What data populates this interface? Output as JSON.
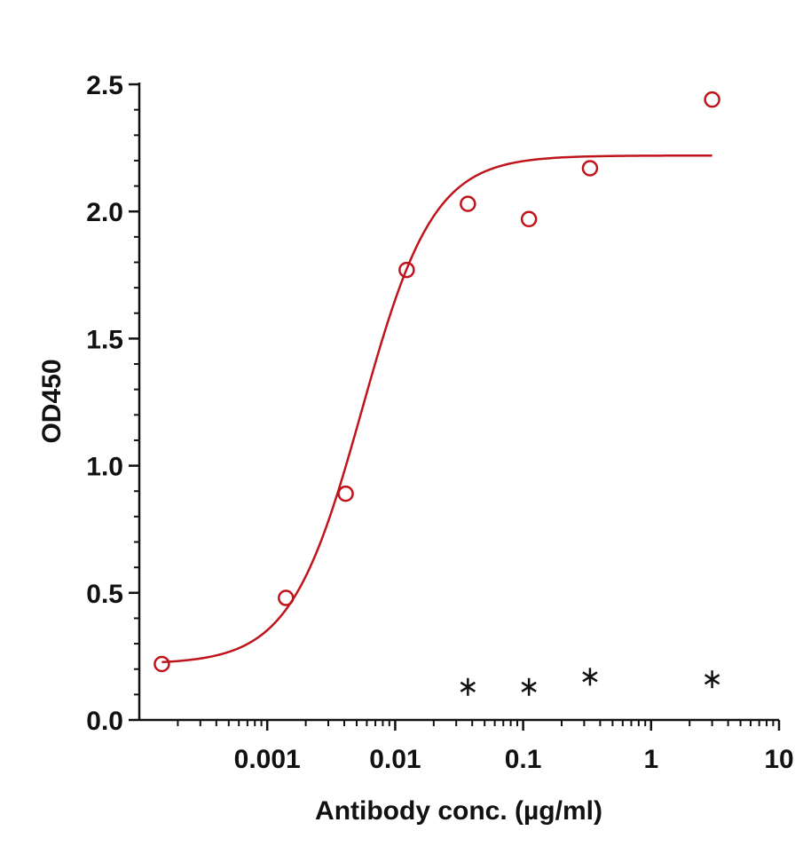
{
  "chart_data": {
    "type": "scatter",
    "title": "",
    "xlabel": "Antibody conc. (µg/ml)",
    "ylabel": "OD450",
    "xscale": "log",
    "xlim": [
      0.0001,
      10
    ],
    "ylim": [
      0,
      2.5
    ],
    "x_ticks": [
      {
        "value": 0.001,
        "label": "0.001"
      },
      {
        "value": 0.01,
        "label": "0.01"
      },
      {
        "value": 0.1,
        "label": "0.1"
      },
      {
        "value": 1,
        "label": "1"
      },
      {
        "value": 10,
        "label": "10"
      }
    ],
    "y_ticks": [
      {
        "value": 0,
        "label": "0.0"
      },
      {
        "value": 0.5,
        "label": "0.5"
      },
      {
        "value": 1.0,
        "label": "1.0"
      },
      {
        "value": 1.5,
        "label": "1.5"
      },
      {
        "value": 2.0,
        "label": "2.0"
      },
      {
        "value": 2.5,
        "label": "2.5"
      }
    ],
    "grid": false,
    "legend": "none",
    "series": [
      {
        "marker": "open-circle",
        "color": "#c0141c",
        "points": [
          {
            "x": 0.00015,
            "y": 0.22
          },
          {
            "x": 0.0014,
            "y": 0.48
          },
          {
            "x": 0.0041,
            "y": 0.89
          },
          {
            "x": 0.0123,
            "y": 1.77
          },
          {
            "x": 0.037,
            "y": 2.03
          },
          {
            "x": 0.111,
            "y": 1.97
          },
          {
            "x": 0.333,
            "y": 2.17
          },
          {
            "x": 3.0,
            "y": 2.44
          }
        ],
        "fit": {
          "model": "4PL",
          "bottom": 0.22,
          "top": 2.22,
          "ec50": 0.0055,
          "hill": 1.55,
          "x_range": [
            0.00015,
            3.0
          ]
        }
      },
      {
        "marker": "asterisk",
        "color": "#111111",
        "points": [
          {
            "x": 0.037,
            "y": 0.13
          },
          {
            "x": 0.111,
            "y": 0.13
          },
          {
            "x": 0.333,
            "y": 0.17
          },
          {
            "x": 3.0,
            "y": 0.16
          }
        ]
      }
    ]
  }
}
